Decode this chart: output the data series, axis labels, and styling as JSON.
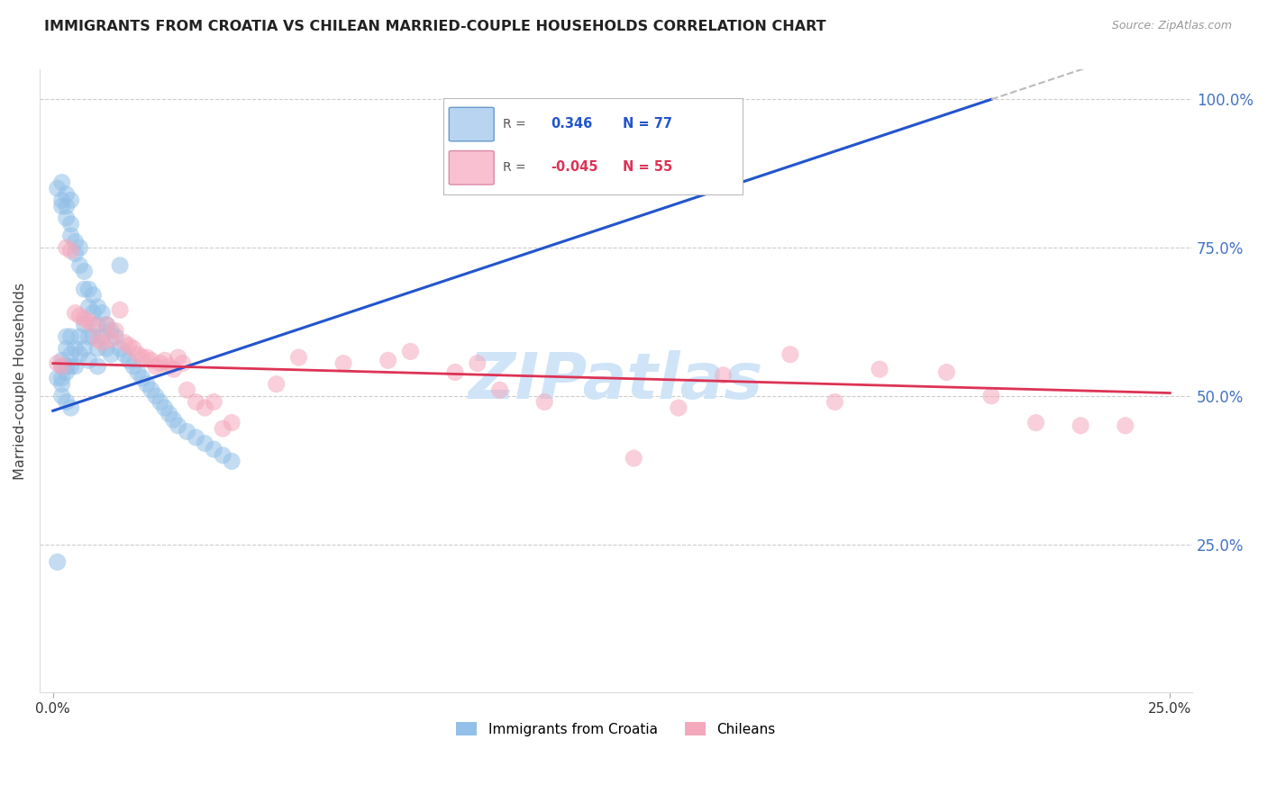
{
  "title": "IMMIGRANTS FROM CROATIA VS CHILEAN MARRIED-COUPLE HOUSEHOLDS CORRELATION CHART",
  "source": "Source: ZipAtlas.com",
  "ylabel": "Married-couple Households",
  "y_ticks_right": [
    "100.0%",
    "75.0%",
    "50.0%",
    "25.0%"
  ],
  "y_ticks_right_vals": [
    1.0,
    0.75,
    0.5,
    0.25
  ],
  "legend_blue_r_label": "R = ",
  "legend_blue_r_val": "0.346",
  "legend_blue_n": "N = 77",
  "legend_pink_r_label": "R =",
  "legend_pink_r_val": "-0.045",
  "legend_pink_n": "N = 55",
  "legend_labels": [
    "Immigrants from Croatia",
    "Chileans"
  ],
  "blue_color": "#92c0e8",
  "pink_color": "#f4a8bc",
  "blue_line_color": "#2255cc",
  "pink_line_color": "#dd3355",
  "dashed_line_color": "#bbbbbb",
  "watermark": "ZIPatlas",
  "watermark_color": "#d0e4f8",
  "background_color": "#ffffff",
  "grid_color": "#cccccc",
  "title_color": "#222222",
  "right_axis_color": "#4472c4",
  "blue_scatter_x": [
    0.001,
    0.001,
    0.002,
    0.002,
    0.002,
    0.002,
    0.002,
    0.002,
    0.003,
    0.003,
    0.003,
    0.003,
    0.003,
    0.003,
    0.004,
    0.004,
    0.004,
    0.004,
    0.004,
    0.005,
    0.005,
    0.005,
    0.005,
    0.006,
    0.006,
    0.006,
    0.006,
    0.007,
    0.007,
    0.007,
    0.007,
    0.008,
    0.008,
    0.008,
    0.008,
    0.009,
    0.009,
    0.009,
    0.01,
    0.01,
    0.01,
    0.01,
    0.011,
    0.011,
    0.012,
    0.012,
    0.013,
    0.013,
    0.014,
    0.015,
    0.015,
    0.016,
    0.017,
    0.018,
    0.019,
    0.02,
    0.021,
    0.022,
    0.023,
    0.024,
    0.025,
    0.026,
    0.027,
    0.028,
    0.03,
    0.032,
    0.034,
    0.036,
    0.038,
    0.04,
    0.001,
    0.002,
    0.003,
    0.004,
    0.002,
    0.003,
    0.004
  ],
  "blue_scatter_y": [
    0.22,
    0.53,
    0.83,
    0.82,
    0.56,
    0.55,
    0.53,
    0.52,
    0.82,
    0.8,
    0.6,
    0.58,
    0.55,
    0.54,
    0.79,
    0.77,
    0.6,
    0.57,
    0.55,
    0.76,
    0.74,
    0.58,
    0.55,
    0.75,
    0.72,
    0.6,
    0.57,
    0.71,
    0.68,
    0.62,
    0.58,
    0.68,
    0.65,
    0.6,
    0.56,
    0.67,
    0.64,
    0.6,
    0.65,
    0.62,
    0.58,
    0.55,
    0.64,
    0.6,
    0.62,
    0.58,
    0.61,
    0.57,
    0.6,
    0.72,
    0.58,
    0.57,
    0.56,
    0.55,
    0.54,
    0.53,
    0.52,
    0.51,
    0.5,
    0.49,
    0.48,
    0.47,
    0.46,
    0.45,
    0.44,
    0.43,
    0.42,
    0.41,
    0.4,
    0.39,
    0.85,
    0.86,
    0.84,
    0.83,
    0.5,
    0.49,
    0.48
  ],
  "pink_scatter_x": [
    0.001,
    0.002,
    0.003,
    0.004,
    0.005,
    0.006,
    0.007,
    0.008,
    0.009,
    0.01,
    0.011,
    0.012,
    0.013,
    0.014,
    0.015,
    0.016,
    0.017,
    0.018,
    0.019,
    0.02,
    0.021,
    0.022,
    0.023,
    0.024,
    0.025,
    0.026,
    0.027,
    0.028,
    0.029,
    0.03,
    0.032,
    0.034,
    0.036,
    0.038,
    0.04,
    0.05,
    0.055,
    0.065,
    0.075,
    0.08,
    0.09,
    0.095,
    0.1,
    0.11,
    0.13,
    0.14,
    0.15,
    0.165,
    0.175,
    0.185,
    0.2,
    0.21,
    0.22,
    0.23,
    0.24
  ],
  "pink_scatter_y": [
    0.555,
    0.55,
    0.75,
    0.745,
    0.64,
    0.635,
    0.63,
    0.625,
    0.62,
    0.595,
    0.59,
    0.62,
    0.595,
    0.61,
    0.645,
    0.59,
    0.585,
    0.58,
    0.57,
    0.565,
    0.565,
    0.56,
    0.55,
    0.555,
    0.56,
    0.55,
    0.545,
    0.565,
    0.555,
    0.51,
    0.49,
    0.48,
    0.49,
    0.445,
    0.455,
    0.52,
    0.565,
    0.555,
    0.56,
    0.575,
    0.54,
    0.555,
    0.51,
    0.49,
    0.395,
    0.48,
    0.535,
    0.57,
    0.49,
    0.545,
    0.54,
    0.5,
    0.455,
    0.45,
    0.45
  ],
  "xlim": [
    -0.003,
    0.255
  ],
  "ylim": [
    0.0,
    1.05
  ],
  "blue_line_x0": 0.0,
  "blue_line_y0": 0.475,
  "blue_line_x1": 0.21,
  "blue_line_y1": 1.0,
  "pink_line_x0": 0.0,
  "pink_line_y0": 0.555,
  "pink_line_x1": 0.25,
  "pink_line_y1": 0.505
}
